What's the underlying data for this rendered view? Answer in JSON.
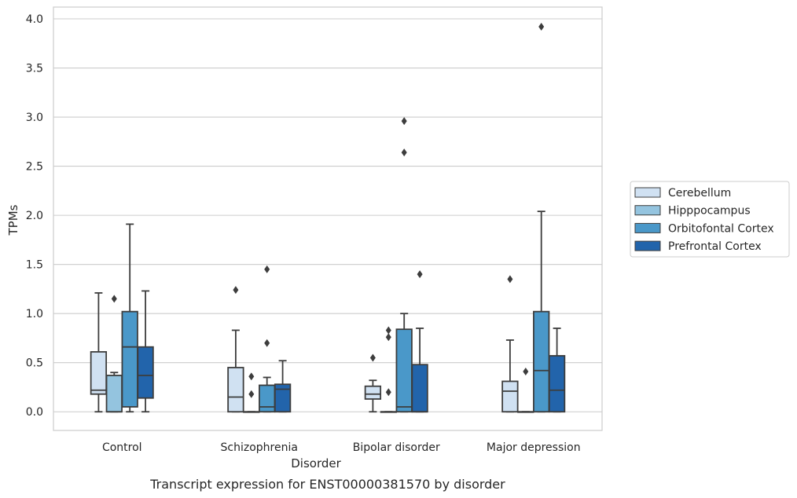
{
  "chart_data": {
    "type": "boxplot",
    "caption": "Transcript expression for ENST00000381570 by disorder",
    "xlabel": "Disorder",
    "ylabel": "TPMs",
    "ylim": [
      -0.19,
      4.12
    ],
    "yticks": [
      0.0,
      0.5,
      1.0,
      1.5,
      2.0,
      2.5,
      3.0,
      3.5,
      4.0
    ],
    "ytick_labels": [
      "0.0",
      "0.5",
      "1.0",
      "1.5",
      "2.0",
      "2.5",
      "3.0",
      "3.5",
      "4.0"
    ],
    "grid": "horizontal",
    "legend_position": "right",
    "categories": [
      "Control",
      "Schizophrenia",
      "Bipolar disorder",
      "Major depression"
    ],
    "series": [
      {
        "name": "Cerebellum",
        "color": "#d0e1f2",
        "boxes": [
          {
            "whislo": 0.0,
            "q1": 0.18,
            "med": 0.22,
            "q3": 0.61,
            "whishi": 1.21,
            "fliers": []
          },
          {
            "whislo": 0.0,
            "q1": 0.0,
            "med": 0.15,
            "q3": 0.45,
            "whishi": 0.83,
            "fliers": [
              1.24
            ]
          },
          {
            "whislo": 0.0,
            "q1": 0.13,
            "med": 0.18,
            "q3": 0.26,
            "whishi": 0.32,
            "fliers": [
              0.55
            ]
          },
          {
            "whislo": 0.0,
            "q1": 0.0,
            "med": 0.21,
            "q3": 0.31,
            "whishi": 0.73,
            "fliers": [
              1.35
            ]
          }
        ]
      },
      {
        "name": "Hipppocampus",
        "color": "#94c4df",
        "boxes": [
          {
            "whislo": 0.0,
            "q1": 0.0,
            "med": 0.0,
            "q3": 0.37,
            "whishi": 0.4,
            "fliers": [
              1.15
            ]
          },
          {
            "whislo": 0.0,
            "q1": 0.0,
            "med": 0.0,
            "q3": 0.0,
            "whishi": 0.0,
            "fliers": [
              0.36,
              0.18
            ]
          },
          {
            "whislo": 0.0,
            "q1": 0.0,
            "med": 0.0,
            "q3": 0.0,
            "whishi": 0.0,
            "fliers": [
              0.83,
              0.76,
              0.2
            ]
          },
          {
            "whislo": 0.0,
            "q1": 0.0,
            "med": 0.0,
            "q3": 0.0,
            "whishi": 0.0,
            "fliers": [
              0.41
            ]
          }
        ]
      },
      {
        "name": "Orbitofontal Cortex",
        "color": "#4a98c9",
        "boxes": [
          {
            "whislo": 0.0,
            "q1": 0.05,
            "med": 0.66,
            "q3": 1.02,
            "whishi": 1.91,
            "fliers": []
          },
          {
            "whislo": 0.0,
            "q1": 0.0,
            "med": 0.05,
            "q3": 0.27,
            "whishi": 0.35,
            "fliers": [
              1.45,
              0.7
            ]
          },
          {
            "whislo": 0.0,
            "q1": 0.0,
            "med": 0.05,
            "q3": 0.84,
            "whishi": 1.0,
            "fliers": [
              2.96,
              2.64
            ]
          },
          {
            "whislo": 0.0,
            "q1": 0.0,
            "med": 0.42,
            "q3": 1.02,
            "whishi": 2.04,
            "fliers": [
              3.92
            ]
          }
        ]
      },
      {
        "name": "Prefrontal Cortex",
        "color": "#2264ab",
        "boxes": [
          {
            "whislo": 0.0,
            "q1": 0.14,
            "med": 0.37,
            "q3": 0.66,
            "whishi": 1.23,
            "fliers": []
          },
          {
            "whislo": 0.0,
            "q1": 0.0,
            "med": 0.23,
            "q3": 0.28,
            "whishi": 0.52,
            "fliers": []
          },
          {
            "whislo": 0.0,
            "q1": 0.0,
            "med": 0.0,
            "q3": 0.48,
            "whishi": 0.85,
            "fliers": [
              1.4
            ]
          },
          {
            "whislo": 0.0,
            "q1": 0.0,
            "med": 0.22,
            "q3": 0.57,
            "whishi": 0.85,
            "fliers": []
          }
        ]
      }
    ]
  }
}
